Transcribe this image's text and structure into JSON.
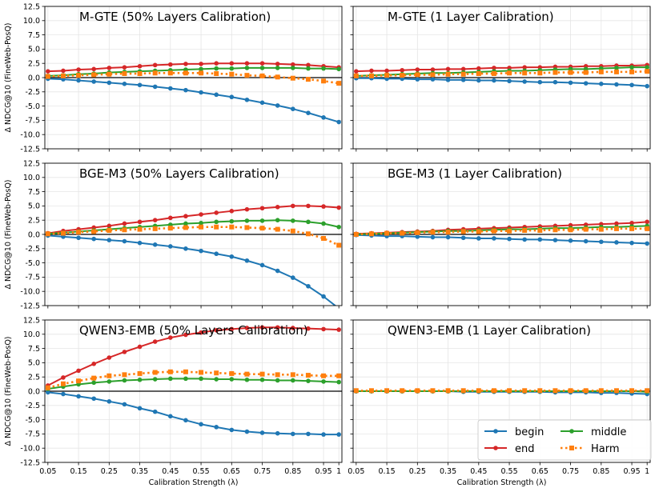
{
  "chart_data": [
    {
      "type": "line",
      "title": "M-GTE (50% Layers Calibration)",
      "ylabel": "Δ NDCG@10 (FineWeb-PosQ)",
      "xlabel": "",
      "ylim": [
        -12.5,
        12.5
      ],
      "x": [
        0.05,
        0.1,
        0.15,
        0.2,
        0.25,
        0.3,
        0.35,
        0.4,
        0.45,
        0.5,
        0.55,
        0.6,
        0.65,
        0.7,
        0.75,
        0.8,
        0.85,
        0.9,
        0.95,
        1.0
      ],
      "series": [
        {
          "name": "begin",
          "values": [
            -0.2,
            -0.3,
            -0.5,
            -0.7,
            -0.9,
            -1.1,
            -1.3,
            -1.6,
            -1.9,
            -2.2,
            -2.6,
            -3.0,
            -3.4,
            -3.9,
            -4.4,
            -4.9,
            -5.5,
            -6.2,
            -7.0,
            -7.8
          ]
        },
        {
          "name": "end",
          "values": [
            1.1,
            1.2,
            1.4,
            1.5,
            1.7,
            1.8,
            2.0,
            2.2,
            2.3,
            2.4,
            2.4,
            2.5,
            2.5,
            2.5,
            2.5,
            2.4,
            2.3,
            2.2,
            2.0,
            1.8
          ]
        },
        {
          "name": "middle",
          "values": [
            0.3,
            0.4,
            0.6,
            0.7,
            0.9,
            1.0,
            1.1,
            1.2,
            1.3,
            1.4,
            1.5,
            1.6,
            1.6,
            1.7,
            1.7,
            1.7,
            1.7,
            1.6,
            1.6,
            1.5
          ]
        },
        {
          "name": "Harm",
          "values": [
            0.2,
            0.3,
            0.4,
            0.5,
            0.6,
            0.7,
            0.7,
            0.8,
            0.8,
            0.8,
            0.8,
            0.7,
            0.6,
            0.4,
            0.3,
            0.1,
            -0.1,
            -0.3,
            -0.6,
            -1.0
          ]
        }
      ]
    },
    {
      "type": "line",
      "title": "M-GTE (1 Layer Calibration)",
      "ylabel": "",
      "xlabel": "",
      "ylim": [
        -12.5,
        12.5
      ],
      "x": [
        0.05,
        0.1,
        0.15,
        0.2,
        0.25,
        0.3,
        0.35,
        0.4,
        0.45,
        0.5,
        0.55,
        0.6,
        0.65,
        0.7,
        0.75,
        0.8,
        0.85,
        0.9,
        0.95,
        1.0
      ],
      "series": [
        {
          "name": "begin",
          "values": [
            -0.1,
            -0.1,
            -0.2,
            -0.2,
            -0.3,
            -0.3,
            -0.4,
            -0.4,
            -0.5,
            -0.5,
            -0.6,
            -0.7,
            -0.8,
            -0.8,
            -0.9,
            -1.0,
            -1.1,
            -1.2,
            -1.3,
            -1.5
          ]
        },
        {
          "name": "end",
          "values": [
            1.1,
            1.2,
            1.2,
            1.3,
            1.4,
            1.4,
            1.5,
            1.5,
            1.6,
            1.7,
            1.7,
            1.8,
            1.8,
            1.9,
            1.9,
            2.0,
            2.0,
            2.1,
            2.1,
            2.2
          ]
        },
        {
          "name": "middle",
          "values": [
            0.3,
            0.4,
            0.5,
            0.6,
            0.7,
            0.8,
            0.8,
            0.9,
            1.0,
            1.1,
            1.2,
            1.2,
            1.3,
            1.4,
            1.5,
            1.5,
            1.6,
            1.7,
            1.8,
            1.8
          ]
        },
        {
          "name": "Harm",
          "values": [
            0.3,
            0.3,
            0.4,
            0.4,
            0.5,
            0.5,
            0.6,
            0.6,
            0.7,
            0.7,
            0.8,
            0.8,
            0.8,
            0.9,
            0.9,
            0.9,
            1.0,
            1.0,
            1.0,
            1.1
          ]
        }
      ]
    },
    {
      "type": "line",
      "title": "BGE-M3 (50% Layers Calibration)",
      "ylabel": "Δ NDCG@10 (FineWeb-PosQ)",
      "xlabel": "",
      "ylim": [
        -12.5,
        12.5
      ],
      "x": [
        0.05,
        0.1,
        0.15,
        0.2,
        0.25,
        0.3,
        0.35,
        0.4,
        0.45,
        0.5,
        0.55,
        0.6,
        0.65,
        0.7,
        0.75,
        0.8,
        0.85,
        0.9,
        0.95,
        1.0
      ],
      "series": [
        {
          "name": "begin",
          "values": [
            -0.2,
            -0.4,
            -0.6,
            -0.8,
            -1.0,
            -1.2,
            -1.5,
            -1.8,
            -2.1,
            -2.5,
            -2.9,
            -3.4,
            -3.9,
            -4.6,
            -5.4,
            -6.4,
            -7.6,
            -9.1,
            -10.9,
            -13.0
          ]
        },
        {
          "name": "end",
          "values": [
            0.2,
            0.6,
            0.9,
            1.2,
            1.5,
            1.9,
            2.2,
            2.5,
            2.9,
            3.2,
            3.5,
            3.8,
            4.1,
            4.4,
            4.6,
            4.8,
            5.0,
            5.0,
            4.9,
            4.7
          ]
        },
        {
          "name": "middle",
          "values": [
            0.1,
            0.3,
            0.5,
            0.7,
            0.9,
            1.1,
            1.3,
            1.5,
            1.7,
            1.9,
            2.0,
            2.2,
            2.3,
            2.4,
            2.4,
            2.5,
            2.4,
            2.2,
            1.9,
            1.3
          ]
        },
        {
          "name": "Harm",
          "values": [
            0.1,
            0.2,
            0.4,
            0.5,
            0.7,
            0.8,
            0.9,
            1.0,
            1.1,
            1.2,
            1.3,
            1.3,
            1.3,
            1.2,
            1.1,
            0.9,
            0.6,
            0.1,
            -0.7,
            -1.9
          ]
        }
      ]
    },
    {
      "type": "line",
      "title": "BGE-M3 (1 Layer Calibration)",
      "ylabel": "",
      "xlabel": "",
      "ylim": [
        -12.5,
        12.5
      ],
      "x": [
        0.05,
        0.1,
        0.15,
        0.2,
        0.25,
        0.3,
        0.35,
        0.4,
        0.45,
        0.5,
        0.55,
        0.6,
        0.65,
        0.7,
        0.75,
        0.8,
        0.85,
        0.9,
        0.95,
        1.0
      ],
      "series": [
        {
          "name": "begin",
          "values": [
            -0.1,
            -0.2,
            -0.3,
            -0.3,
            -0.4,
            -0.5,
            -0.5,
            -0.6,
            -0.7,
            -0.7,
            -0.8,
            -0.9,
            -0.9,
            -1.0,
            -1.1,
            -1.2,
            -1.3,
            -1.4,
            -1.5,
            -1.6
          ]
        },
        {
          "name": "end",
          "values": [
            0.1,
            0.2,
            0.3,
            0.4,
            0.5,
            0.6,
            0.8,
            0.9,
            1.0,
            1.1,
            1.2,
            1.3,
            1.4,
            1.5,
            1.6,
            1.7,
            1.8,
            1.9,
            2.0,
            2.2
          ]
        },
        {
          "name": "middle",
          "values": [
            0.0,
            0.1,
            0.2,
            0.3,
            0.4,
            0.5,
            0.6,
            0.6,
            0.7,
            0.8,
            0.9,
            0.9,
            1.0,
            1.1,
            1.1,
            1.2,
            1.3,
            1.3,
            1.4,
            1.5
          ]
        },
        {
          "name": "Harm",
          "values": [
            0.0,
            0.1,
            0.2,
            0.2,
            0.3,
            0.4,
            0.4,
            0.5,
            0.5,
            0.6,
            0.6,
            0.7,
            0.7,
            0.8,
            0.8,
            0.9,
            0.9,
            1.0,
            1.0,
            1.0
          ]
        }
      ]
    },
    {
      "type": "line",
      "title": "QWEN3-EMB (50% Layers Calibration)",
      "ylabel": "Δ NDCG@10 (FineWeb-PosQ)",
      "xlabel": "Calibration Strength (λ)",
      "ylim": [
        -12.5,
        12.5
      ],
      "x": [
        0.05,
        0.1,
        0.15,
        0.2,
        0.25,
        0.3,
        0.35,
        0.4,
        0.45,
        0.5,
        0.55,
        0.6,
        0.65,
        0.7,
        0.75,
        0.8,
        0.85,
        0.9,
        0.95,
        1.0
      ],
      "series": [
        {
          "name": "begin",
          "values": [
            -0.2,
            -0.5,
            -0.9,
            -1.3,
            -1.8,
            -2.3,
            -3.0,
            -3.6,
            -4.4,
            -5.1,
            -5.8,
            -6.3,
            -6.8,
            -7.1,
            -7.3,
            -7.4,
            -7.5,
            -7.5,
            -7.6,
            -7.6
          ]
        },
        {
          "name": "end",
          "values": [
            1.0,
            2.4,
            3.6,
            4.8,
            5.9,
            6.9,
            7.8,
            8.7,
            9.4,
            9.9,
            10.3,
            10.7,
            10.9,
            11.1,
            11.2,
            11.2,
            11.1,
            11.0,
            10.9,
            10.8
          ]
        },
        {
          "name": "middle",
          "values": [
            0.4,
            0.8,
            1.2,
            1.5,
            1.7,
            1.9,
            2.0,
            2.1,
            2.2,
            2.2,
            2.2,
            2.1,
            2.1,
            2.0,
            2.0,
            1.9,
            1.9,
            1.8,
            1.7,
            1.6
          ]
        },
        {
          "name": "Harm",
          "values": [
            0.6,
            1.3,
            1.8,
            2.3,
            2.7,
            2.9,
            3.1,
            3.3,
            3.4,
            3.4,
            3.3,
            3.2,
            3.1,
            3.0,
            3.0,
            2.9,
            2.9,
            2.8,
            2.7,
            2.7
          ]
        }
      ]
    },
    {
      "type": "line",
      "title": "QWEN3-EMB (1 Layer Calibration)",
      "ylabel": "",
      "xlabel": "Calibration Strength (λ)",
      "ylim": [
        -12.5,
        12.5
      ],
      "legend": "lower-right",
      "x": [
        0.05,
        0.1,
        0.15,
        0.2,
        0.25,
        0.3,
        0.35,
        0.4,
        0.45,
        0.5,
        0.55,
        0.6,
        0.65,
        0.7,
        0.75,
        0.8,
        0.85,
        0.9,
        0.95,
        1.0
      ],
      "series": [
        {
          "name": "begin",
          "values": [
            0.0,
            0.0,
            0.0,
            0.0,
            0.0,
            0.0,
            0.0,
            -0.1,
            -0.1,
            -0.1,
            -0.1,
            -0.1,
            -0.1,
            -0.2,
            -0.2,
            -0.2,
            -0.3,
            -0.3,
            -0.4,
            -0.5
          ]
        },
        {
          "name": "end",
          "values": [
            0.0,
            0.0,
            0.0,
            0.0,
            0.0,
            0.0,
            0.0,
            0.0,
            0.0,
            0.0,
            0.0,
            0.0,
            0.0,
            0.0,
            0.0,
            0.0,
            0.0,
            0.0,
            0.0,
            0.0
          ]
        },
        {
          "name": "middle",
          "values": [
            0.0,
            0.0,
            0.0,
            0.0,
            0.0,
            0.0,
            0.0,
            0.0,
            0.0,
            0.0,
            0.0,
            0.0,
            0.0,
            0.0,
            0.0,
            0.0,
            0.0,
            0.0,
            0.0,
            -0.1
          ]
        },
        {
          "name": "Harm",
          "values": [
            0.1,
            0.1,
            0.1,
            0.1,
            0.1,
            0.1,
            0.1,
            0.1,
            0.1,
            0.1,
            0.1,
            0.1,
            0.1,
            0.1,
            0.1,
            0.1,
            0.1,
            0.1,
            0.1,
            0.1
          ]
        }
      ]
    }
  ],
  "axes": {
    "yticks": [
      "12.5",
      "10.0",
      "7.5",
      "5.0",
      "2.5",
      "0.0",
      "-2.5",
      "-5.0",
      "-7.5",
      "-10.0",
      "-12.5"
    ],
    "xticks": [
      "0.05",
      "0.15",
      "0.25",
      "0.35",
      "0.45",
      "0.55",
      "0.65",
      "0.75",
      "0.85",
      "0.95",
      "1"
    ],
    "xtick_values": [
      0.05,
      0.15,
      0.25,
      0.35,
      0.45,
      0.55,
      0.65,
      0.75,
      0.85,
      0.95,
      1.0
    ],
    "ytick_values": [
      12.5,
      10,
      7.5,
      5,
      2.5,
      0,
      -2.5,
      -5,
      -7.5,
      -10,
      -12.5
    ],
    "xlim": [
      0.04,
      1.01
    ]
  },
  "legend": {
    "entries": [
      "begin",
      "end",
      "middle",
      "Harm"
    ]
  },
  "colors": {
    "begin": "#1f77b4",
    "end": "#d62728",
    "middle": "#2ca02c",
    "Harm": "#ff7f0e",
    "grid": "#e5e5e5",
    "zero_line": "#000000"
  }
}
